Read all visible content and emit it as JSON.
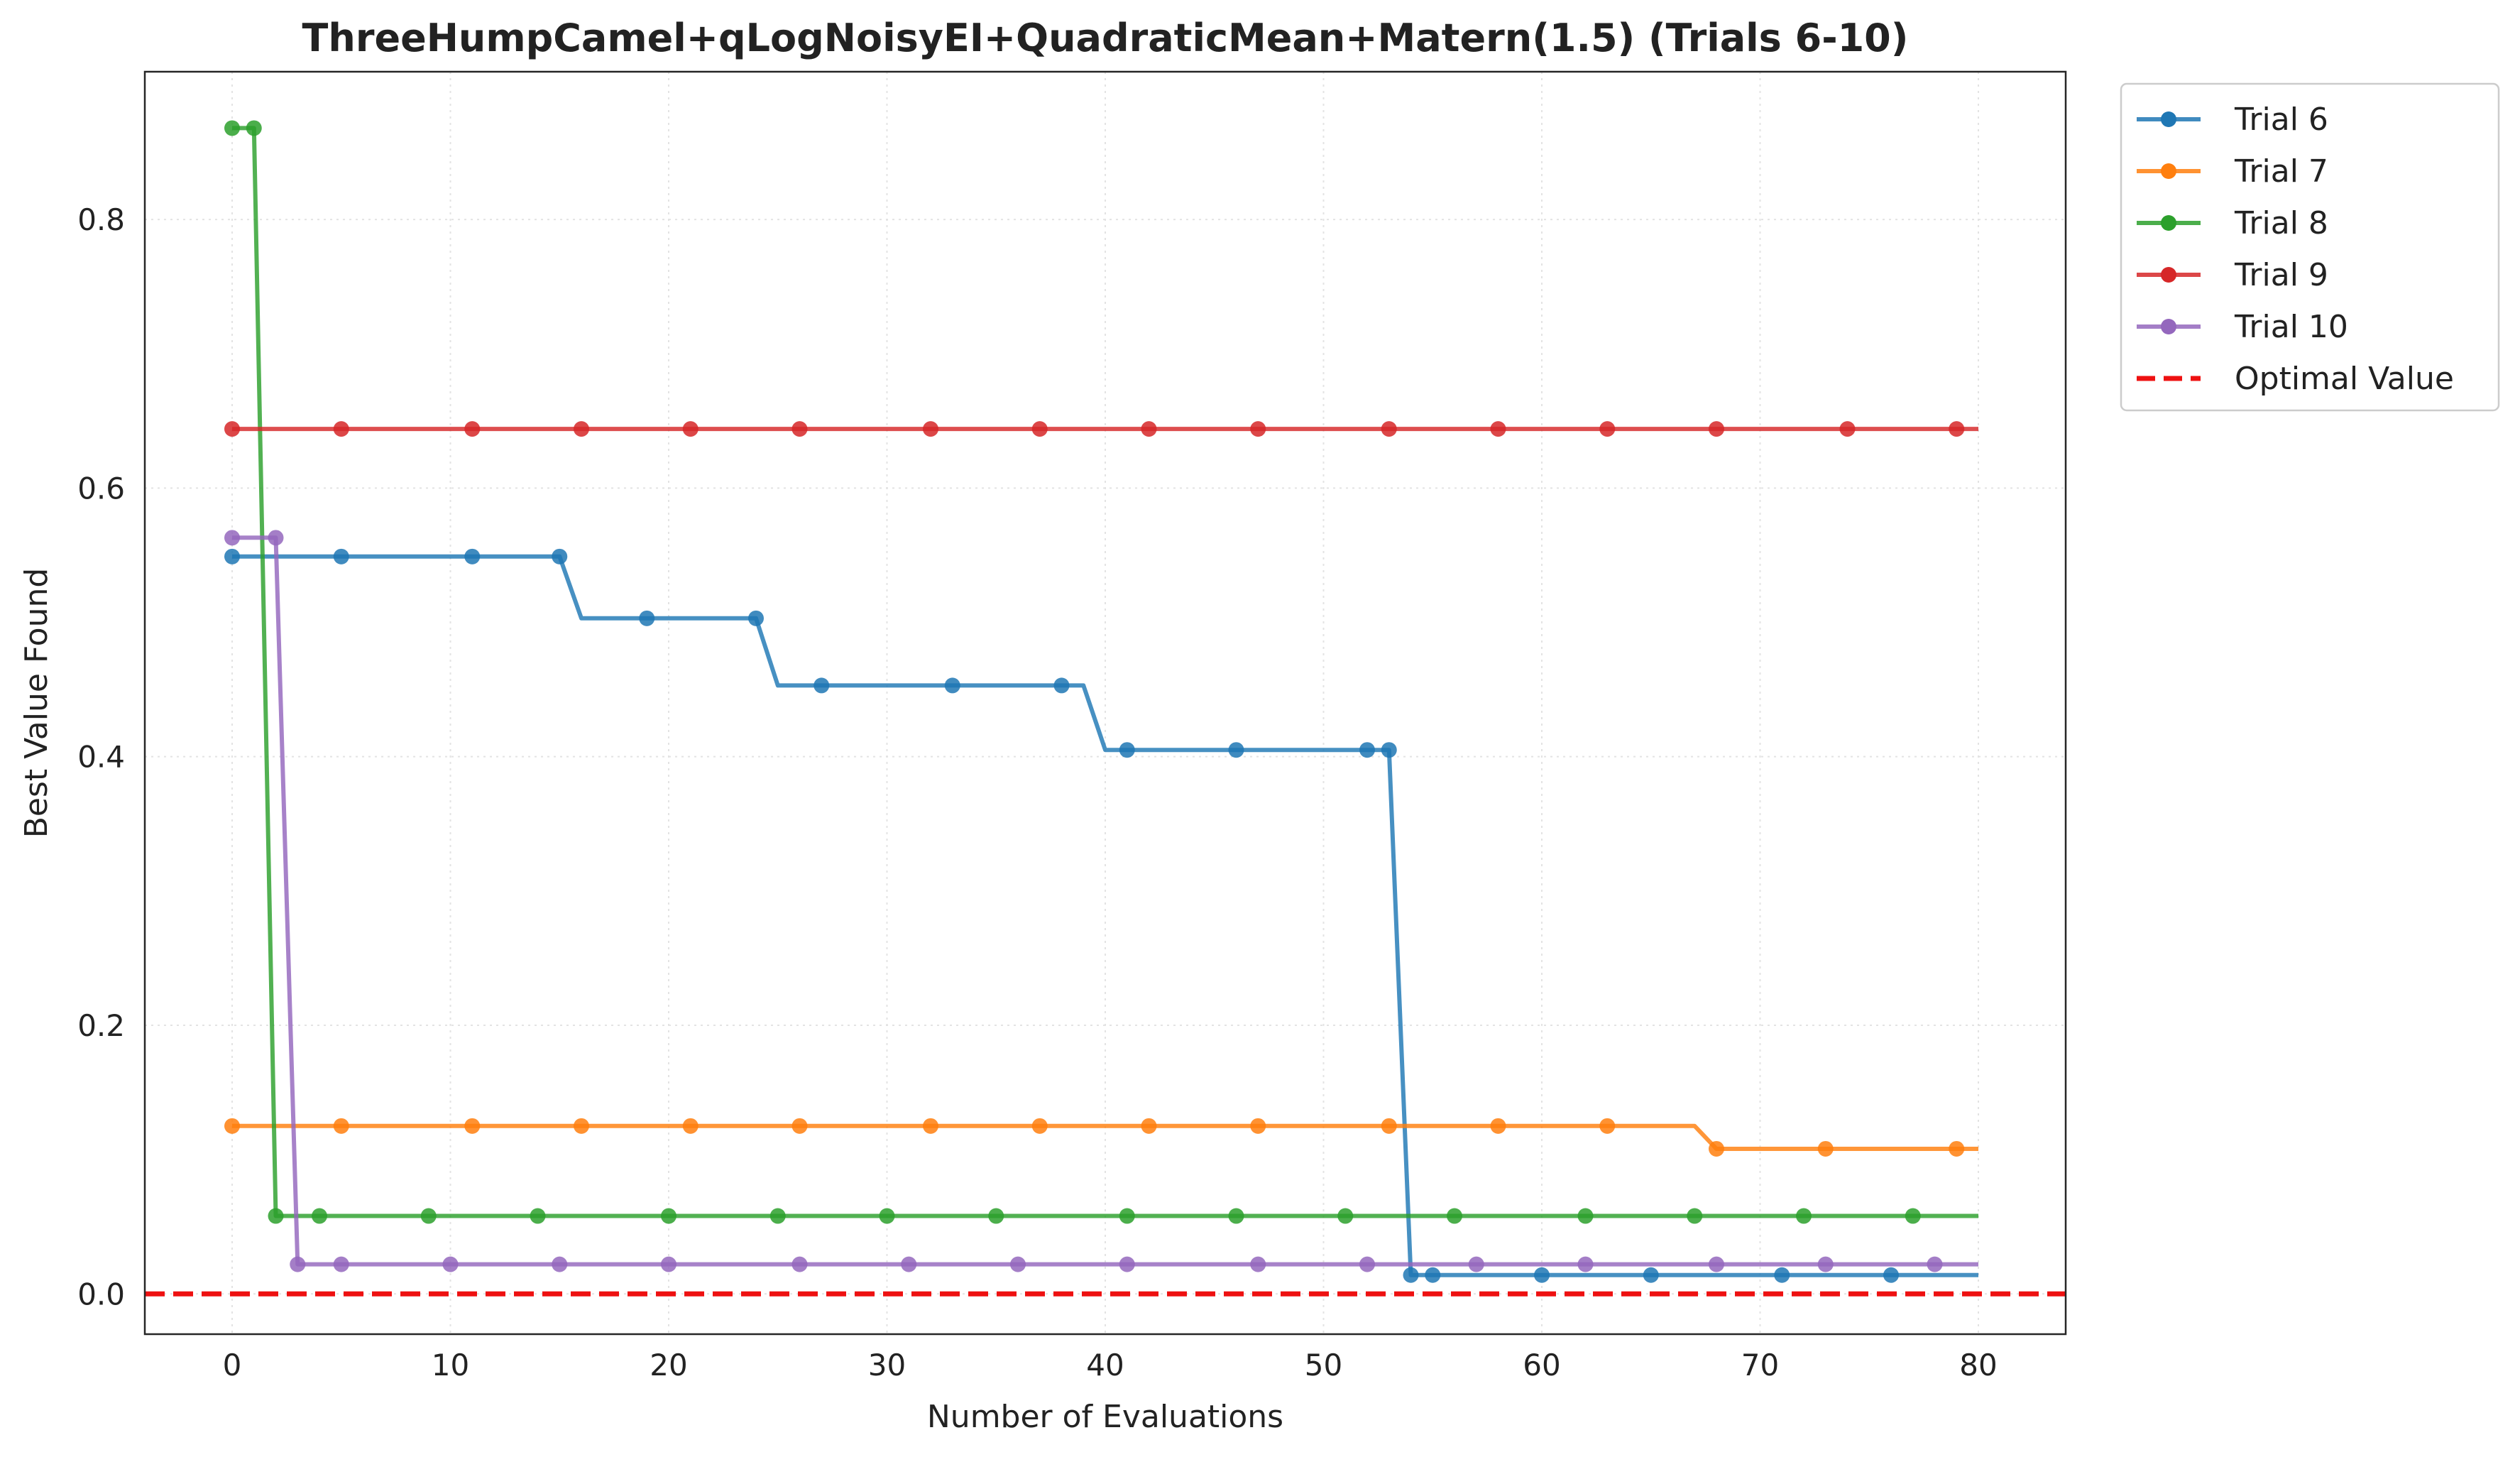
{
  "chart_data": {
    "type": "line",
    "title": "ThreeHumpCamel+qLogNoisyEI+QuadraticMean+Matern(1.5) (Trials 6-10)",
    "xlabel": "Number of Evaluations",
    "ylabel": "Best Value Found",
    "xlim": [
      -4,
      84
    ],
    "ylim": [
      -0.03,
      0.91
    ],
    "xticks": [
      0,
      10,
      20,
      30,
      40,
      50,
      60,
      70,
      80
    ],
    "yticks": [
      0.0,
      0.2,
      0.4,
      0.6,
      0.8
    ],
    "xtick_labels": [
      "0",
      "10",
      "20",
      "30",
      "40",
      "50",
      "60",
      "70",
      "80"
    ],
    "ytick_labels": [
      "0.0",
      "0.2",
      "0.4",
      "0.6",
      "0.8"
    ],
    "grid": true,
    "legend_position": "outside-top-right",
    "series": [
      {
        "name": "Trial 6",
        "color": "#1f77b4",
        "line": [
          [
            0,
            0.549
          ],
          [
            15,
            0.549
          ],
          [
            16,
            0.503
          ],
          [
            24,
            0.503
          ],
          [
            25,
            0.453
          ],
          [
            39,
            0.453
          ],
          [
            40,
            0.405
          ],
          [
            53,
            0.405
          ],
          [
            54,
            0.014
          ],
          [
            80,
            0.014
          ]
        ],
        "markers": [
          [
            0,
            0.549
          ],
          [
            5,
            0.549
          ],
          [
            11,
            0.549
          ],
          [
            15,
            0.549
          ],
          [
            19,
            0.503
          ],
          [
            24,
            0.503
          ],
          [
            27,
            0.453
          ],
          [
            33,
            0.453
          ],
          [
            38,
            0.453
          ],
          [
            41,
            0.405
          ],
          [
            46,
            0.405
          ],
          [
            52,
            0.405
          ],
          [
            53,
            0.405
          ],
          [
            54,
            0.014
          ],
          [
            55,
            0.014
          ],
          [
            60,
            0.014
          ],
          [
            65,
            0.014
          ],
          [
            71,
            0.014
          ],
          [
            76,
            0.014
          ]
        ]
      },
      {
        "name": "Trial 7",
        "color": "#ff7f0e",
        "line": [
          [
            0,
            0.125
          ],
          [
            67,
            0.125
          ],
          [
            68,
            0.108
          ],
          [
            80,
            0.108
          ]
        ],
        "markers": [
          [
            0,
            0.125
          ],
          [
            5,
            0.125
          ],
          [
            11,
            0.125
          ],
          [
            16,
            0.125
          ],
          [
            21,
            0.125
          ],
          [
            26,
            0.125
          ],
          [
            32,
            0.125
          ],
          [
            37,
            0.125
          ],
          [
            42,
            0.125
          ],
          [
            47,
            0.125
          ],
          [
            53,
            0.125
          ],
          [
            58,
            0.125
          ],
          [
            63,
            0.125
          ],
          [
            68,
            0.108
          ],
          [
            73,
            0.108
          ],
          [
            79,
            0.108
          ]
        ]
      },
      {
        "name": "Trial 8",
        "color": "#2ca02c",
        "line": [
          [
            0,
            0.868
          ],
          [
            1,
            0.868
          ],
          [
            2,
            0.058
          ],
          [
            80,
            0.058
          ]
        ],
        "markers": [
          [
            0,
            0.868
          ],
          [
            1,
            0.868
          ],
          [
            2,
            0.058
          ],
          [
            4,
            0.058
          ],
          [
            9,
            0.058
          ],
          [
            14,
            0.058
          ],
          [
            20,
            0.058
          ],
          [
            25,
            0.058
          ],
          [
            30,
            0.058
          ],
          [
            35,
            0.058
          ],
          [
            41,
            0.058
          ],
          [
            46,
            0.058
          ],
          [
            51,
            0.058
          ],
          [
            56,
            0.058
          ],
          [
            62,
            0.058
          ],
          [
            67,
            0.058
          ],
          [
            72,
            0.058
          ],
          [
            77,
            0.058
          ]
        ]
      },
      {
        "name": "Trial 9",
        "color": "#d62728",
        "line": [
          [
            0,
            0.644
          ],
          [
            80,
            0.644
          ]
        ],
        "markers": [
          [
            0,
            0.644
          ],
          [
            5,
            0.644
          ],
          [
            11,
            0.644
          ],
          [
            16,
            0.644
          ],
          [
            21,
            0.644
          ],
          [
            26,
            0.644
          ],
          [
            32,
            0.644
          ],
          [
            37,
            0.644
          ],
          [
            42,
            0.644
          ],
          [
            47,
            0.644
          ],
          [
            53,
            0.644
          ],
          [
            58,
            0.644
          ],
          [
            63,
            0.644
          ],
          [
            68,
            0.644
          ],
          [
            74,
            0.644
          ],
          [
            79,
            0.644
          ]
        ]
      },
      {
        "name": "Trial 10",
        "color": "#9467bd",
        "line": [
          [
            0,
            0.563
          ],
          [
            2,
            0.563
          ],
          [
            3,
            0.022
          ],
          [
            80,
            0.022
          ]
        ],
        "markers": [
          [
            0,
            0.563
          ],
          [
            2,
            0.563
          ],
          [
            3,
            0.022
          ],
          [
            5,
            0.022
          ],
          [
            10,
            0.022
          ],
          [
            15,
            0.022
          ],
          [
            20,
            0.022
          ],
          [
            26,
            0.022
          ],
          [
            31,
            0.022
          ],
          [
            36,
            0.022
          ],
          [
            41,
            0.022
          ],
          [
            47,
            0.022
          ],
          [
            52,
            0.022
          ],
          [
            57,
            0.022
          ],
          [
            62,
            0.022
          ],
          [
            68,
            0.022
          ],
          [
            73,
            0.022
          ],
          [
            78,
            0.022
          ]
        ]
      }
    ],
    "reference_line": {
      "name": "Optimal Value",
      "y": 0.0,
      "color": "#ee1111",
      "style": "dashed"
    }
  }
}
